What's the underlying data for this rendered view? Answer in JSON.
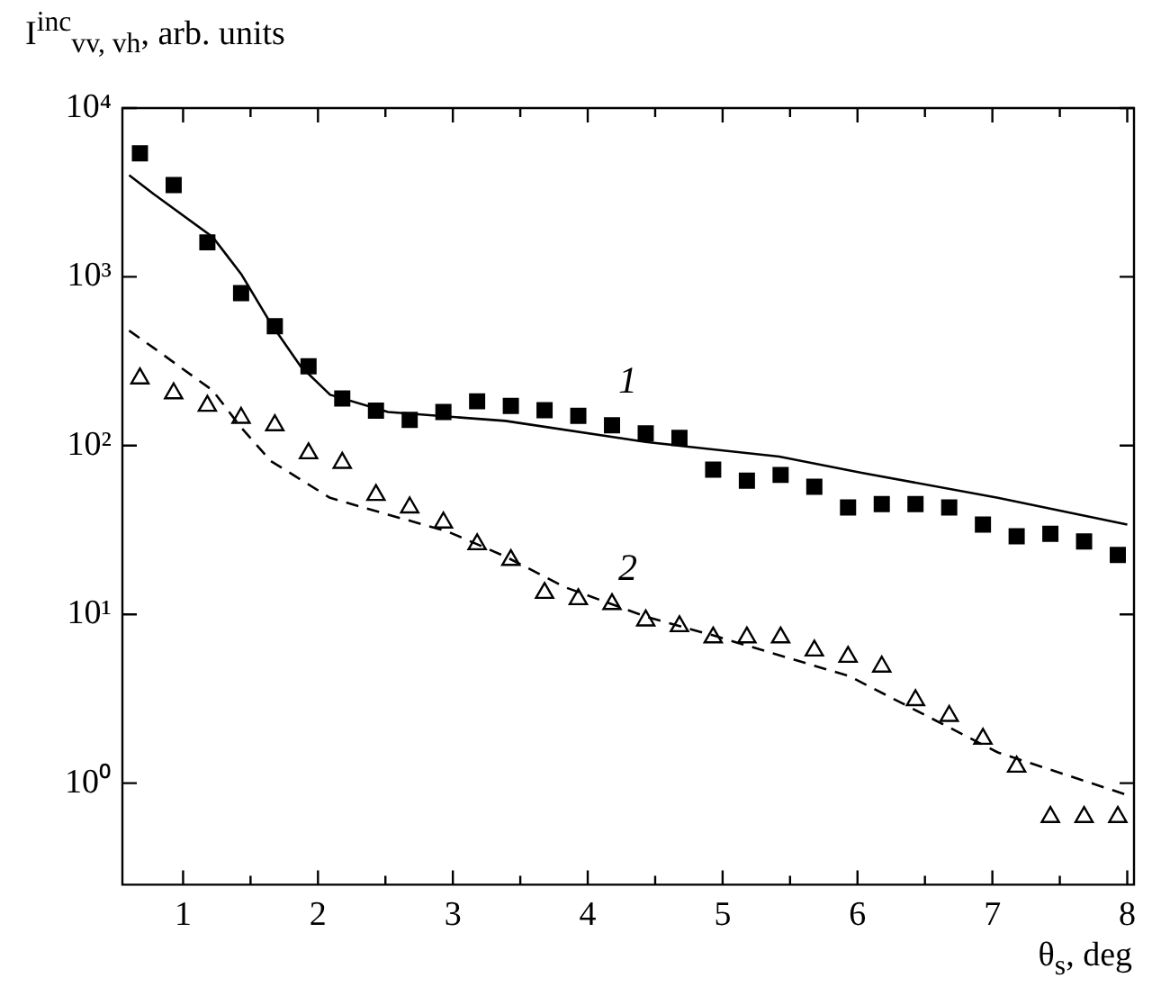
{
  "chart_data": {
    "type": "scatter",
    "xlabel": "θ$_{s}$, deg",
    "ylabel": "I$^{inc}$$_{vv, vh}$, arb. units",
    "xlim": [
      0.55,
      8.05
    ],
    "xticks": [
      1,
      2,
      3,
      4,
      5,
      6,
      7,
      8
    ],
    "ylim": [
      0.25,
      10000
    ],
    "log": "y",
    "yticks": [
      {
        "value": 1,
        "label": "10⁰"
      },
      {
        "value": 10,
        "label": "10¹"
      },
      {
        "value": 100,
        "label": "10²"
      },
      {
        "value": 1000,
        "label": "10³"
      },
      {
        "value": 10000,
        "label": "10⁴"
      }
    ],
    "grid": false,
    "legend": false,
    "series": [
      {
        "type": "line",
        "color": "#000000",
        "marker": "none",
        "line_style": "solid",
        "x": [
          0.6,
          0.78,
          1.22,
          1.43,
          1.65,
          1.87,
          2.09,
          2.52,
          3.39,
          4.43,
          5.42,
          6.03,
          7.04,
          8.0
        ],
        "values": [
          4000,
          3100,
          1720,
          1040,
          530,
          296,
          200,
          158,
          140,
          105,
          86,
          69,
          49,
          34
        ]
      },
      {
        "type": "line",
        "color": "#000000",
        "marker": "none",
        "line_style": "dashed",
        "x": [
          0.6,
          0.78,
          1.22,
          1.43,
          1.65,
          2.09,
          2.52,
          2.96,
          3.39,
          3.83,
          4.43,
          4.93,
          5.94,
          7.04,
          8.0
        ],
        "values": [
          480,
          380,
          212,
          128,
          81,
          49,
          39,
          31,
          22,
          14.5,
          9.7,
          7.5,
          4.3,
          1.52,
          0.85
        ]
      },
      {
        "name": "1",
        "color": "#000000",
        "marker": "square",
        "x": [
          0.68,
          0.93,
          1.18,
          1.43,
          1.68,
          1.93,
          2.18,
          2.43,
          2.68,
          2.93,
          3.18,
          3.43,
          3.68,
          3.93,
          4.18,
          4.43,
          4.68,
          4.93,
          5.18,
          5.43,
          5.68,
          5.93,
          6.18,
          6.43,
          6.68,
          6.93,
          7.18,
          7.43,
          7.68,
          7.93
        ],
        "values": [
          5400,
          3500,
          1600,
          800,
          510,
          295,
          190,
          161,
          142,
          158,
          183,
          172,
          162,
          150,
          132,
          118,
          111,
          72,
          62,
          67,
          57,
          43,
          45,
          45,
          43,
          34,
          29,
          30,
          27,
          22.5
        ]
      },
      {
        "name": "2",
        "color": "#000000",
        "marker": "triangle",
        "x": [
          0.68,
          0.93,
          1.18,
          1.43,
          1.68,
          1.93,
          2.18,
          2.43,
          2.68,
          2.93,
          3.18,
          3.43,
          3.68,
          3.93,
          4.18,
          4.43,
          4.68,
          4.93,
          5.18,
          5.43,
          5.68,
          5.93,
          6.18,
          6.43,
          6.68,
          6.93,
          7.18,
          7.43,
          7.68,
          7.93
        ],
        "values": [
          250,
          204,
          172,
          146,
          132,
          90,
          79,
          51,
          43,
          35,
          26,
          21,
          13.4,
          12.3,
          11.5,
          9.2,
          8.5,
          7.3,
          7.3,
          7.3,
          6.1,
          5.6,
          4.9,
          3.1,
          2.5,
          1.83,
          1.25,
          0.63,
          0.63,
          0.63
        ]
      }
    ]
  }
}
